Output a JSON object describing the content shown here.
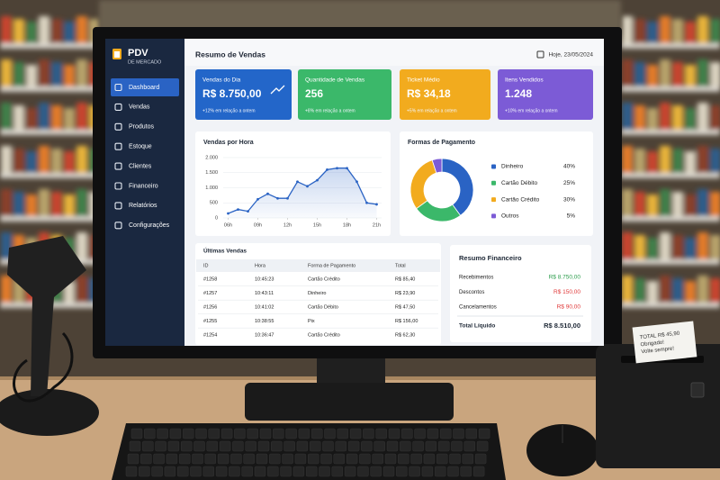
{
  "sidebar": {
    "brand": "PDV",
    "brand_subtitle": "DE MERCADO",
    "menu": [
      "Dashboard",
      "Vendas",
      "Produtos",
      "Estoque",
      "Clientes",
      "Financeiro",
      "Relatórios",
      "Configurações"
    ]
  },
  "header": {
    "title": "Resumo de Vendas",
    "date": "Hoje, 23/05/2024"
  },
  "kpis": [
    {
      "label": "Vendas do Dia",
      "value": "R$ 8.750,00",
      "note": "+12% em relação a ontem",
      "color": "#2366c9"
    },
    {
      "label": "Quantidade de Vendas",
      "value": "256",
      "note": "+8% em relação a ontem",
      "color": "#3bb86a"
    },
    {
      "label": "Ticket Médio",
      "value": "R$ 34,18",
      "note": "+5% em relação a ontem",
      "color": "#f2ab1e"
    },
    {
      "label": "Itens Vendidos",
      "value": "1.248",
      "note": "+10% em relação a ontem",
      "color": "#7c5bd6"
    }
  ],
  "chart_data": [
    {
      "type": "line",
      "title": "Vendas por Hora",
      "x": [
        6,
        7,
        8,
        9,
        10,
        11,
        12,
        13,
        14,
        15,
        16,
        17,
        18,
        19,
        20,
        21
      ],
      "values": [
        150,
        280,
        220,
        620,
        800,
        650,
        650,
        1200,
        1050,
        1250,
        1600,
        1650,
        1650,
        1200,
        500,
        450
      ],
      "color": "#2a63c4",
      "xlim": [
        5.5,
        21.5
      ],
      "xticks": [
        {
          "value": 6,
          "label": "06h"
        },
        {
          "value": 9,
          "label": "09h"
        },
        {
          "value": 12,
          "label": "12h"
        },
        {
          "value": 15,
          "label": "15h"
        },
        {
          "value": 18,
          "label": "18h"
        },
        {
          "value": 21,
          "label": "21h"
        }
      ],
      "ylim": [
        0,
        2000
      ],
      "yticks": [
        0,
        500,
        {
          "value": 1000,
          "label": "1.000"
        },
        {
          "value": 1500,
          "label": "1.500"
        },
        {
          "value": 2000,
          "label": "2.000"
        }
      ],
      "grid": true
    },
    {
      "type": "pie",
      "title": "Formas de Pagamento",
      "categories": [
        "Dinheiro",
        "Cartão Débito",
        "Cartão Crédito",
        "Outros"
      ],
      "values": [
        40,
        25,
        30,
        5
      ],
      "value_labels": [
        "40%",
        "25%",
        "30%",
        "5%"
      ],
      "colors": [
        "#2a63c4",
        "#3bb86a",
        "#f2ab1e",
        "#7c5bd6"
      ]
    }
  ],
  "table": {
    "title": "Últimas Vendas",
    "columns": [
      "ID",
      "Hora",
      "Forma de Pagamento",
      "Total"
    ],
    "rows": [
      [
        "#1258",
        "10:45:23",
        "Cartão Crédito",
        "R$ 85,40"
      ],
      [
        "#1257",
        "10:43:11",
        "Dinheiro",
        "R$ 23,90"
      ],
      [
        "#1256",
        "10:41:02",
        "Cartão Débito",
        "R$ 47,50"
      ],
      [
        "#1255",
        "10:38:55",
        "Pix",
        "R$ 156,00"
      ],
      [
        "#1254",
        "10:36:47",
        "Cartão Crédito",
        "R$ 62,30"
      ]
    ]
  },
  "financial": {
    "title": "Resumo Financeiro",
    "rows": [
      {
        "label": "Recebimentos",
        "value": "R$ 8.750,00",
        "color": "#2e9e4e"
      },
      {
        "label": "Descontos",
        "value": "R$ 150,00",
        "color": "#e03a3a"
      },
      {
        "label": "Cancelamentos",
        "value": "R$ 90,00",
        "color": "#e03a3a"
      }
    ],
    "total_label": "Total Líquido",
    "total_value": "R$ 8.510,00"
  },
  "receipt": {
    "lines": [
      "TOTAL  R$ 45,90",
      "Obrigado!",
      "Volte sempre!"
    ]
  }
}
